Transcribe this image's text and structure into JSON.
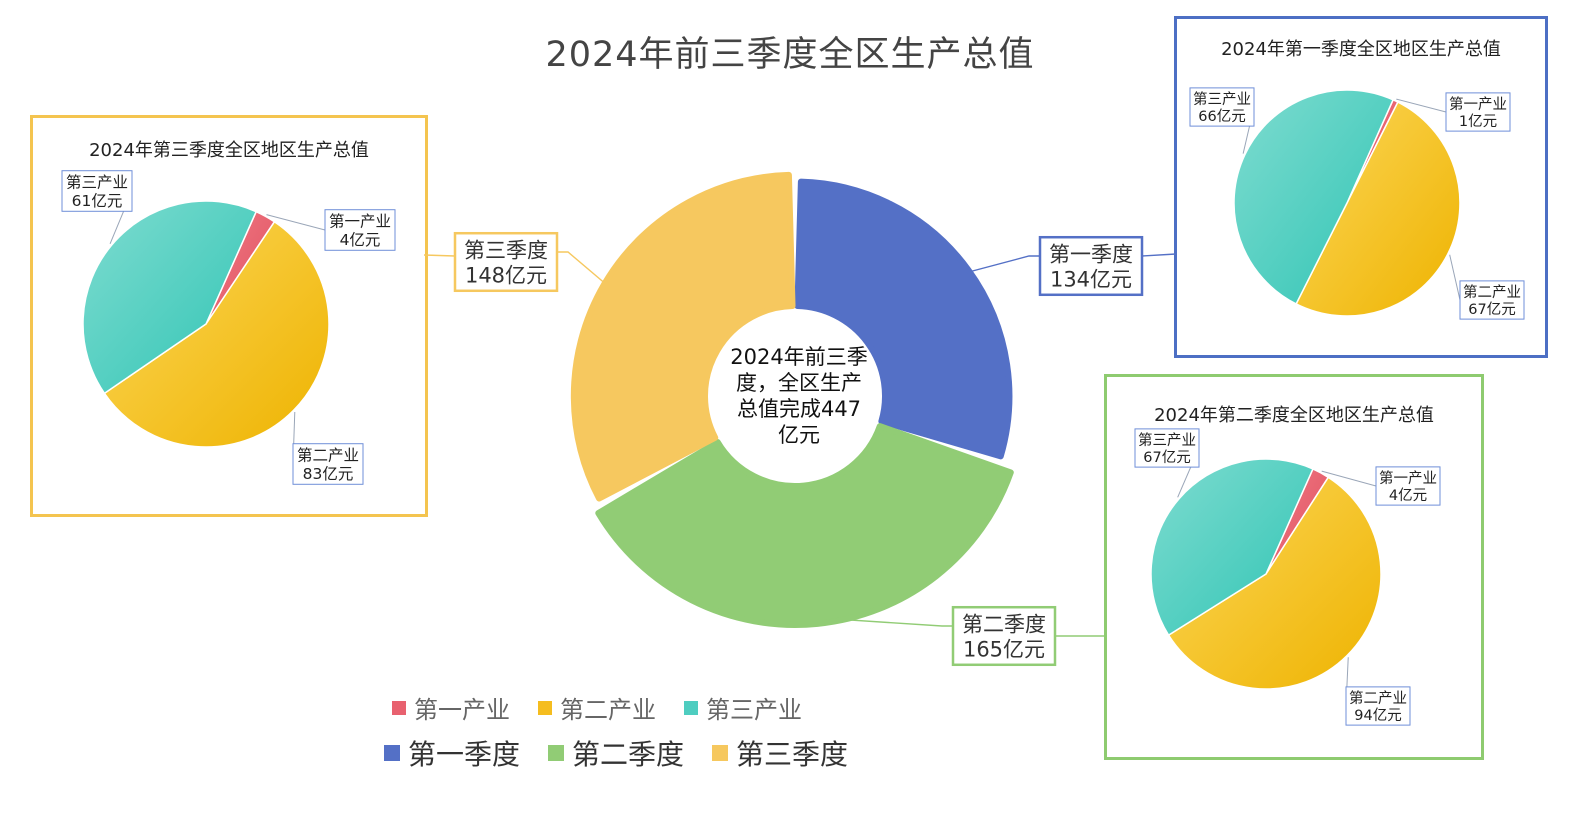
{
  "title": "2024年前三季度全区生产总值",
  "colors": {
    "q1": "#5470c6",
    "q2": "#91cc75",
    "q3": "#f6c85f",
    "primary": "#e8616f",
    "secondary": "#f5bd1f",
    "tertiary": "#4ecdc0",
    "panel_q1_border": "#4d6fc4",
    "panel_q2_border": "#8ecb70",
    "panel_q3_border": "#f4c44f",
    "label_box_border": "#6f8fd8"
  },
  "legends": {
    "industries": [
      "第一产业",
      "第二产业",
      "第三产业"
    ],
    "quarters": [
      "第一季度",
      "第二季度",
      "第三季度"
    ]
  },
  "chart_data": [
    {
      "type": "pie",
      "variant": "donut",
      "title": "2024年前三季度全区生产总值",
      "center_text": [
        "2024年前三季",
        "度，全区生产",
        "总值完成447",
        "亿元"
      ],
      "categories": [
        "第一季度",
        "第二季度",
        "第三季度"
      ],
      "values": [
        134,
        165,
        148
      ],
      "unit": "亿元",
      "data_labels": [
        "第一季度\n134亿元",
        "第二季度\n165亿元",
        "第三季度\n148亿元"
      ]
    },
    {
      "type": "pie",
      "title": "2024年第一季度全区地区生产总值",
      "categories": [
        "第一产业",
        "第二产业",
        "第三产业"
      ],
      "values": [
        1,
        67,
        66
      ],
      "unit": "亿元",
      "data_labels": [
        "第一产业\n1亿元",
        "第二产业\n67亿元",
        "第三产业\n66亿元"
      ]
    },
    {
      "type": "pie",
      "title": "2024年第二季度全区地区生产总值",
      "categories": [
        "第一产业",
        "第二产业",
        "第三产业"
      ],
      "values": [
        4,
        94,
        67
      ],
      "unit": "亿元",
      "data_labels": [
        "第一产业\n4亿元",
        "第二产业\n94亿元",
        "第三产业\n67亿元"
      ]
    },
    {
      "type": "pie",
      "title": "2024年第三季度全区地区生产总值",
      "categories": [
        "第一产业",
        "第二产业",
        "第三产业"
      ],
      "values": [
        4,
        83,
        61
      ],
      "unit": "亿元",
      "data_labels": [
        "第一产业\n4亿元",
        "第二产业\n83亿元",
        "第三产业\n61亿元"
      ]
    }
  ]
}
